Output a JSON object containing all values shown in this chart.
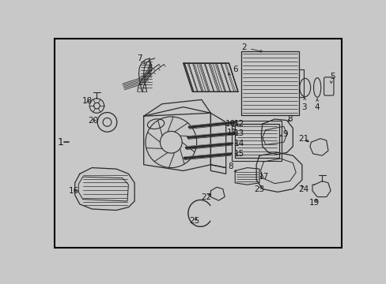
{
  "bg_color": "#c8c8c8",
  "border_color": "#000000",
  "line_color": "#2a2a2a",
  "fig_width": 4.89,
  "fig_height": 3.6,
  "dpi": 100,
  "label_color": "#1a1a1a"
}
